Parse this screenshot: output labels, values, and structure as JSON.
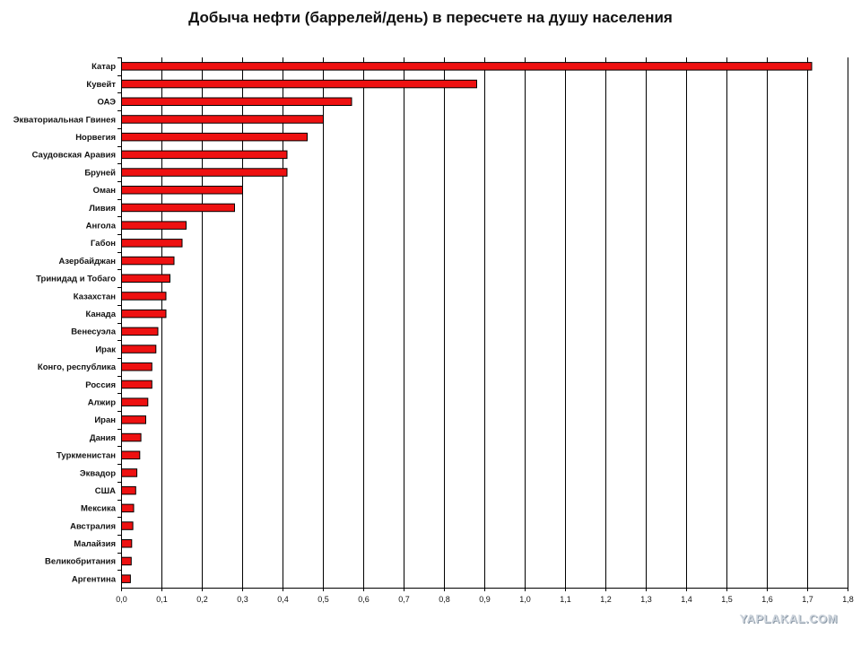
{
  "title": "Добыча нефти (баррелей/день) в пересчете на душу населения",
  "watermark": "YAPLAKAL.COM",
  "colors": {
    "bar_fill": "#ee1111",
    "bar_stroke": "#000000",
    "grid": "#000000",
    "background": "#ffffff"
  },
  "chart_data": {
    "type": "bar",
    "orientation": "horizontal",
    "title": "Добыча нефти (баррелей/день) в пересчете на душу населения",
    "xlabel": "",
    "ylabel": "",
    "xlim": [
      0,
      1.8
    ],
    "grid": true,
    "legend": "none",
    "x_ticks": [
      "0,0",
      "0,1",
      "0,2",
      "0,3",
      "0,4",
      "0,5",
      "0,6",
      "0,7",
      "0,8",
      "0,9",
      "1,0",
      "1,1",
      "1,2",
      "1,3",
      "1,4",
      "1,5",
      "1,6",
      "1,7",
      "1,8"
    ],
    "categories": [
      "Катар",
      "Кувейт",
      "ОАЭ",
      "Экваториальная Гвинея",
      "Норвегия",
      "Саудовская Аравия",
      "Бруней",
      "Оман",
      "Ливия",
      "Ангола",
      "Габон",
      "Азербайджан",
      "Тринидад и Тобаго",
      "Казахстан",
      "Канада",
      "Венесуэла",
      "Ирак",
      "Конго, республика",
      "Россия",
      "Алжир",
      "Иран",
      "Дания",
      "Туркменистан",
      "Эквадор",
      "США",
      "Мексика",
      "Австралия",
      "Малайзия",
      "Великобритания",
      "Аргентина"
    ],
    "values": [
      1.71,
      0.88,
      0.57,
      0.5,
      0.46,
      0.41,
      0.41,
      0.3,
      0.28,
      0.16,
      0.15,
      0.13,
      0.12,
      0.11,
      0.11,
      0.09,
      0.085,
      0.075,
      0.075,
      0.065,
      0.06,
      0.048,
      0.045,
      0.038,
      0.035,
      0.03,
      0.028,
      0.025,
      0.024,
      0.022
    ]
  }
}
